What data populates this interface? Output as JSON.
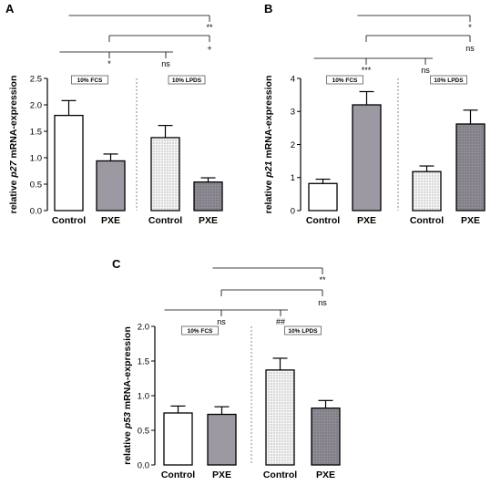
{
  "chart_data": [
    {
      "panel": "A",
      "type": "bar",
      "ylabel_parts": [
        "relative ",
        "p27",
        " mRNA-expression"
      ],
      "ylim": [
        0,
        2.5
      ],
      "yticks": [
        "0.0",
        "0.5",
        "1.0",
        "1.5",
        "2.0",
        "2.5"
      ],
      "categories": [
        "Control",
        "PXE",
        "Control",
        "PXE"
      ],
      "values": [
        1.8,
        0.94,
        1.38,
        0.54
      ],
      "errors": [
        0.28,
        0.13,
        0.23,
        0.08
      ],
      "fills": [
        "white",
        "gray",
        "dotted-light",
        "dotted-dark"
      ],
      "conditions": [
        "10% FCS",
        "10% LPDS"
      ],
      "significance": [
        {
          "from": 0,
          "to": 3,
          "label": "**"
        },
        {
          "from": 0,
          "to": 3,
          "label": "+"
        },
        {
          "from": 0,
          "to": 1,
          "label": "*"
        },
        {
          "from": 0,
          "to": 2,
          "label": "ns"
        }
      ]
    },
    {
      "panel": "B",
      "type": "bar",
      "ylabel_parts": [
        "relative ",
        "p21",
        " mRNA-expression"
      ],
      "ylim": [
        0,
        4
      ],
      "yticks": [
        "0",
        "1",
        "2",
        "3",
        "4"
      ],
      "categories": [
        "Control",
        "PXE",
        "Control",
        "PXE"
      ],
      "values": [
        0.82,
        3.2,
        1.18,
        2.62
      ],
      "errors": [
        0.13,
        0.4,
        0.17,
        0.42
      ],
      "fills": [
        "white",
        "gray",
        "dotted-light",
        "dotted-dark"
      ],
      "conditions": [
        "10% FCS",
        "10% LPDS"
      ],
      "significance": [
        {
          "from": 1,
          "to": 3,
          "label": "*"
        },
        {
          "from": 1,
          "to": 3,
          "label": "ns"
        },
        {
          "from": 0,
          "to": 1,
          "label": "***"
        },
        {
          "from": 0,
          "to": 2,
          "label": "ns"
        }
      ]
    },
    {
      "panel": "C",
      "type": "bar",
      "ylabel_parts": [
        "relative ",
        "p53",
        " mRNA-expression"
      ],
      "ylim": [
        0,
        2.0
      ],
      "yticks": [
        "0.0",
        "0.5",
        "1.0",
        "1.5",
        "2.0"
      ],
      "categories": [
        "Control",
        "PXE",
        "Control",
        "PXE"
      ],
      "values": [
        0.75,
        0.73,
        1.37,
        0.82
      ],
      "errors": [
        0.1,
        0.11,
        0.17,
        0.11
      ],
      "fills": [
        "white",
        "gray",
        "dotted-light",
        "dotted-dark"
      ],
      "conditions": [
        "10% FCS",
        "10% LPDS"
      ],
      "significance": [
        {
          "from": 1,
          "to": 3,
          "label": "**"
        },
        {
          "from": 0,
          "to": 3,
          "label": "ns"
        },
        {
          "from": 0,
          "to": 1,
          "label": "ns"
        },
        {
          "from": 0,
          "to": 2,
          "label": "##"
        }
      ]
    }
  ],
  "colors": {
    "bar_outline": "#000000",
    "pxe_fill": "#9c99a3",
    "lpds_control_fill": "#f3f3f3",
    "lpds_pxe_fill": "#8f8c96",
    "stipple": "#555555",
    "divider": "#888888"
  }
}
